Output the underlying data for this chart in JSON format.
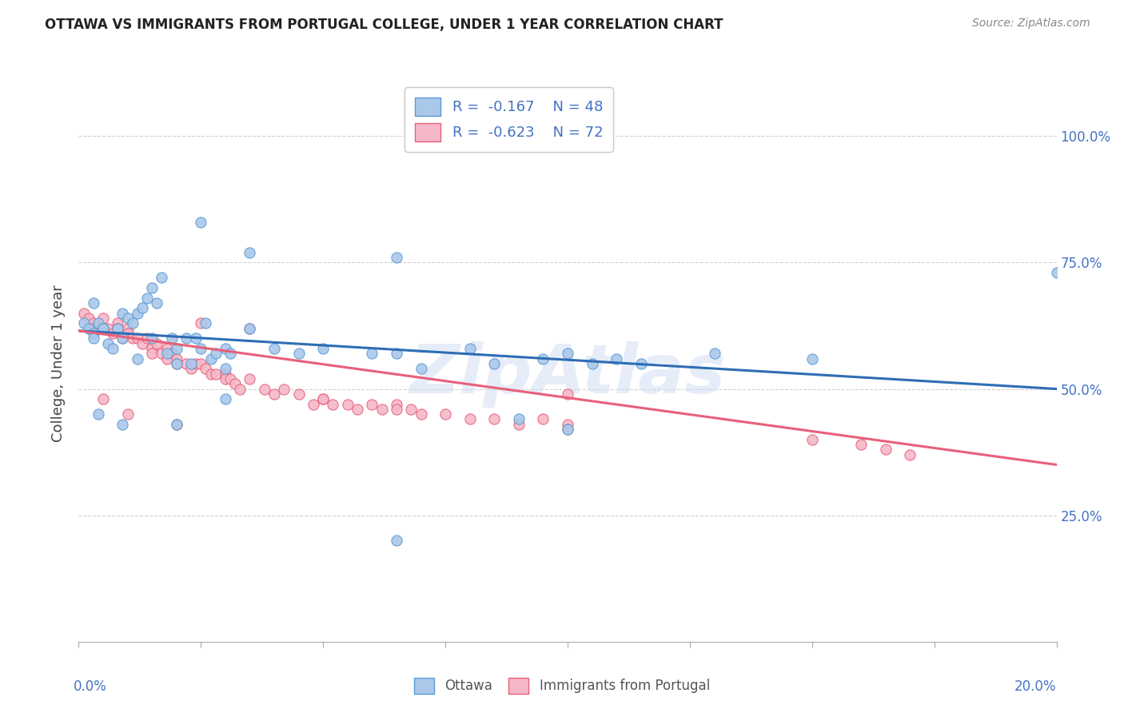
{
  "title": "OTTAWA VS IMMIGRANTS FROM PORTUGAL COLLEGE, UNDER 1 YEAR CORRELATION CHART",
  "source": "Source: ZipAtlas.com",
  "ylabel": "College, Under 1 year",
  "legend_label_bottom": [
    "Ottawa",
    "Immigrants from Portugal"
  ],
  "watermark": "ZipAtlas",
  "blue_scatter_color": "#aac8ea",
  "pink_scatter_color": "#f5b8c8",
  "blue_line_color": "#2e6db4",
  "pink_line_color": "#e8607a",
  "blue_edge_color": "#5b9bd5",
  "pink_edge_color": "#e8607a",
  "right_tick_color": "#4472c4",
  "x_min": 0.0,
  "x_max": 0.2,
  "y_min": 0.0,
  "y_max": 1.1,
  "y_tick_positions": [
    0.25,
    0.5,
    0.75,
    1.0
  ],
  "y_tick_labels": [
    "25.0%",
    "50.0%",
    "75.0%",
    "100.0%"
  ],
  "x_tick_positions": [
    0.0,
    0.05,
    0.1,
    0.15,
    0.2
  ],
  "x_tick_labels": [
    "0.0%",
    "",
    "",
    "",
    "20.0%"
  ],
  "blue_line": {
    "x0": 0.0,
    "y0": 0.615,
    "x1": 0.2,
    "y1": 0.5
  },
  "pink_line": {
    "x0": 0.0,
    "y0": 0.615,
    "x1": 0.2,
    "y1": 0.35
  },
  "blue_points": [
    [
      0.001,
      0.63
    ],
    [
      0.002,
      0.62
    ],
    [
      0.003,
      0.61
    ],
    [
      0.003,
      0.67
    ],
    [
      0.003,
      0.6
    ],
    [
      0.004,
      0.63
    ],
    [
      0.005,
      0.62
    ],
    [
      0.005,
      0.62
    ],
    [
      0.006,
      0.59
    ],
    [
      0.007,
      0.58
    ],
    [
      0.008,
      0.62
    ],
    [
      0.009,
      0.65
    ],
    [
      0.009,
      0.6
    ],
    [
      0.01,
      0.64
    ],
    [
      0.011,
      0.63
    ],
    [
      0.012,
      0.65
    ],
    [
      0.012,
      0.56
    ],
    [
      0.013,
      0.66
    ],
    [
      0.014,
      0.68
    ],
    [
      0.015,
      0.7
    ],
    [
      0.015,
      0.6
    ],
    [
      0.016,
      0.67
    ],
    [
      0.017,
      0.72
    ],
    [
      0.018,
      0.57
    ],
    [
      0.019,
      0.6
    ],
    [
      0.02,
      0.58
    ],
    [
      0.02,
      0.55
    ],
    [
      0.022,
      0.6
    ],
    [
      0.023,
      0.55
    ],
    [
      0.024,
      0.6
    ],
    [
      0.025,
      0.58
    ],
    [
      0.025,
      0.83
    ],
    [
      0.026,
      0.63
    ],
    [
      0.027,
      0.56
    ],
    [
      0.028,
      0.57
    ],
    [
      0.03,
      0.58
    ],
    [
      0.03,
      0.54
    ],
    [
      0.031,
      0.57
    ],
    [
      0.035,
      0.62
    ],
    [
      0.035,
      0.77
    ],
    [
      0.04,
      0.58
    ],
    [
      0.045,
      0.57
    ],
    [
      0.05,
      0.58
    ],
    [
      0.06,
      0.57
    ],
    [
      0.065,
      0.57
    ],
    [
      0.065,
      0.76
    ],
    [
      0.07,
      0.54
    ],
    [
      0.08,
      0.58
    ],
    [
      0.004,
      0.45
    ],
    [
      0.009,
      0.43
    ],
    [
      0.02,
      0.43
    ],
    [
      0.03,
      0.48
    ],
    [
      0.085,
      0.55
    ],
    [
      0.095,
      0.56
    ],
    [
      0.1,
      0.57
    ],
    [
      0.1,
      0.42
    ],
    [
      0.105,
      0.55
    ],
    [
      0.11,
      0.56
    ],
    [
      0.115,
      0.55
    ],
    [
      0.13,
      0.57
    ],
    [
      0.065,
      0.2
    ],
    [
      0.15,
      0.56
    ],
    [
      0.2,
      0.73
    ],
    [
      0.09,
      0.44
    ]
  ],
  "pink_points": [
    [
      0.001,
      0.65
    ],
    [
      0.002,
      0.64
    ],
    [
      0.003,
      0.63
    ],
    [
      0.003,
      0.62
    ],
    [
      0.004,
      0.62
    ],
    [
      0.005,
      0.64
    ],
    [
      0.006,
      0.62
    ],
    [
      0.007,
      0.61
    ],
    [
      0.008,
      0.63
    ],
    [
      0.008,
      0.62
    ],
    [
      0.009,
      0.6
    ],
    [
      0.01,
      0.62
    ],
    [
      0.01,
      0.61
    ],
    [
      0.011,
      0.6
    ],
    [
      0.012,
      0.6
    ],
    [
      0.013,
      0.59
    ],
    [
      0.014,
      0.6
    ],
    [
      0.015,
      0.58
    ],
    [
      0.015,
      0.57
    ],
    [
      0.016,
      0.59
    ],
    [
      0.017,
      0.57
    ],
    [
      0.018,
      0.58
    ],
    [
      0.018,
      0.56
    ],
    [
      0.019,
      0.57
    ],
    [
      0.02,
      0.56
    ],
    [
      0.02,
      0.55
    ],
    [
      0.022,
      0.55
    ],
    [
      0.023,
      0.54
    ],
    [
      0.024,
      0.55
    ],
    [
      0.025,
      0.55
    ],
    [
      0.025,
      0.63
    ],
    [
      0.026,
      0.54
    ],
    [
      0.027,
      0.53
    ],
    [
      0.028,
      0.53
    ],
    [
      0.03,
      0.53
    ],
    [
      0.03,
      0.52
    ],
    [
      0.031,
      0.52
    ],
    [
      0.032,
      0.51
    ],
    [
      0.033,
      0.5
    ],
    [
      0.035,
      0.52
    ],
    [
      0.035,
      0.62
    ],
    [
      0.038,
      0.5
    ],
    [
      0.04,
      0.49
    ],
    [
      0.042,
      0.5
    ],
    [
      0.045,
      0.49
    ],
    [
      0.048,
      0.47
    ],
    [
      0.05,
      0.48
    ],
    [
      0.05,
      0.48
    ],
    [
      0.052,
      0.47
    ],
    [
      0.055,
      0.47
    ],
    [
      0.057,
      0.46
    ],
    [
      0.06,
      0.47
    ],
    [
      0.062,
      0.46
    ],
    [
      0.065,
      0.47
    ],
    [
      0.065,
      0.46
    ],
    [
      0.068,
      0.46
    ],
    [
      0.07,
      0.45
    ],
    [
      0.075,
      0.45
    ],
    [
      0.08,
      0.44
    ],
    [
      0.085,
      0.44
    ],
    [
      0.09,
      0.43
    ],
    [
      0.095,
      0.44
    ],
    [
      0.1,
      0.43
    ],
    [
      0.1,
      0.42
    ],
    [
      0.005,
      0.48
    ],
    [
      0.01,
      0.45
    ],
    [
      0.02,
      0.43
    ],
    [
      0.1,
      0.49
    ],
    [
      0.15,
      0.4
    ],
    [
      0.16,
      0.39
    ],
    [
      0.165,
      0.38
    ],
    [
      0.17,
      0.37
    ]
  ]
}
